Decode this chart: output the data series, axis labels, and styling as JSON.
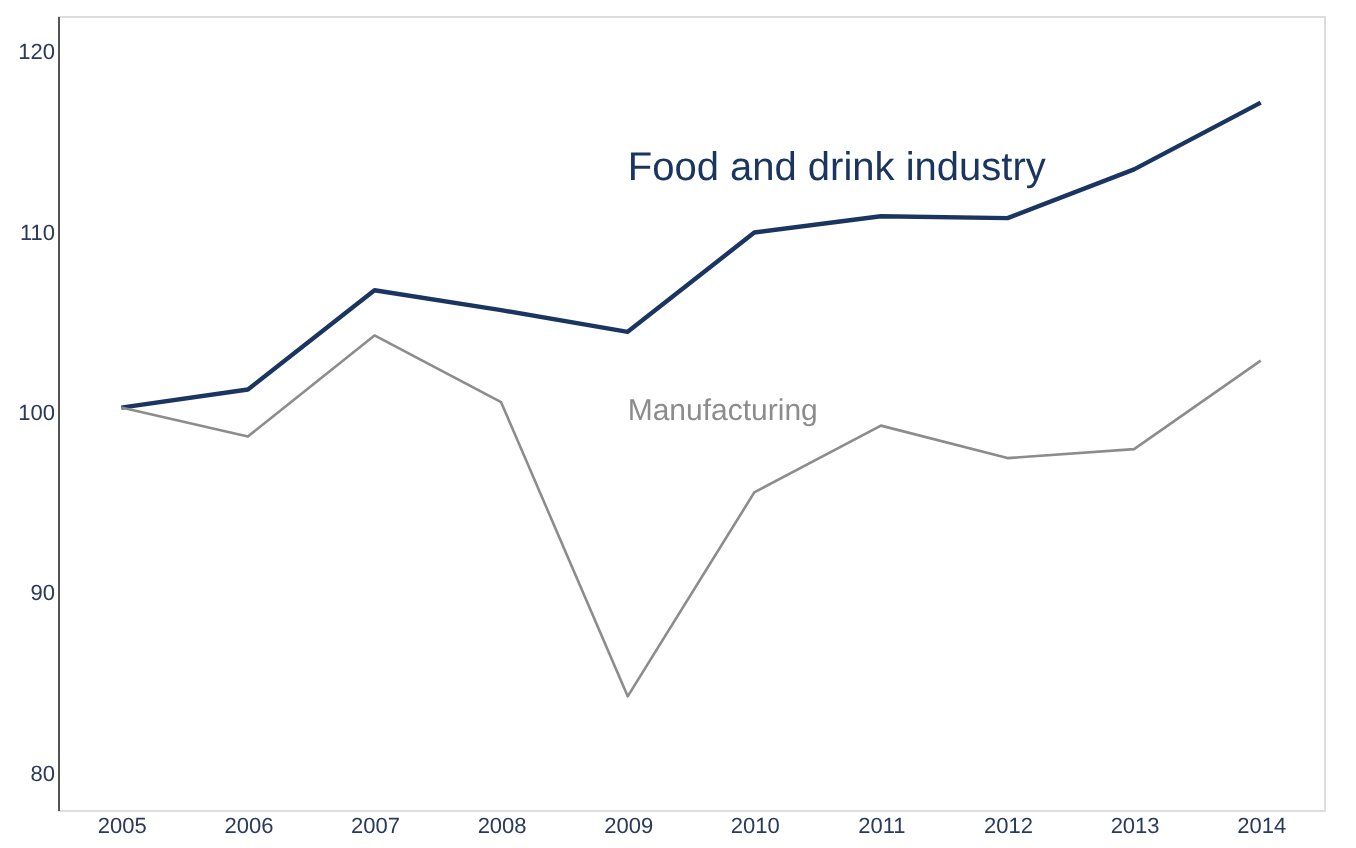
{
  "chart_data": {
    "type": "line",
    "categories": [
      "2005",
      "2006",
      "2007",
      "2008",
      "2009",
      "2010",
      "2011",
      "2012",
      "2013",
      "2014"
    ],
    "series": [
      {
        "name": "Food and drink industry",
        "color": "#1b3561",
        "values": [
          100.3,
          101.3,
          106.8,
          105.7,
          104.5,
          110.0,
          110.9,
          110.8,
          113.5,
          117.2
        ]
      },
      {
        "name": "Manufacturing",
        "color": "#8c8c8c",
        "values": [
          100.3,
          98.7,
          104.3,
          100.6,
          84.3,
          95.6,
          99.3,
          97.5,
          98.0,
          102.9
        ]
      }
    ],
    "ylim": [
      78,
      122
    ],
    "yticks": [
      80,
      90,
      100,
      110,
      120
    ],
    "grid": false,
    "legend": false,
    "line_style": "solid"
  }
}
